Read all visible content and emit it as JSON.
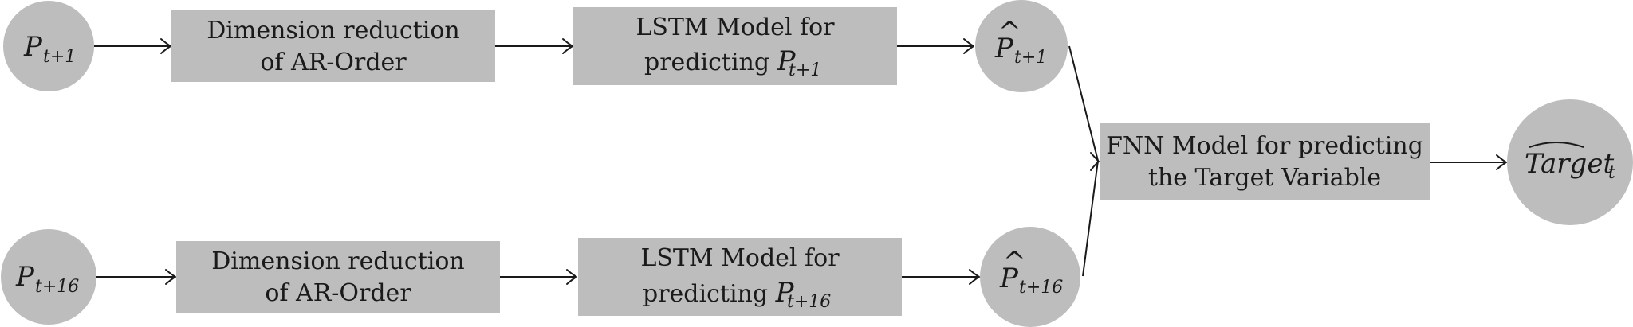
{
  "inputs": {
    "top": {
      "symbol": "P",
      "subscript": "t+1"
    },
    "bottom": {
      "symbol": "P",
      "subscript": "t+16"
    }
  },
  "reduction": {
    "top": {
      "line1": "Dimension reduction",
      "line2": "of AR-Order"
    },
    "bottom": {
      "line1": "Dimension reduction",
      "line2": "of AR-Order"
    }
  },
  "lstm": {
    "top": {
      "line1": "LSTM Model for",
      "line2": "predicting ",
      "symbol": "P",
      "subscript": "t+1"
    },
    "bottom": {
      "line1": "LSTM Model for",
      "line2": "predicting ",
      "symbol": "P",
      "subscript": "t+16"
    }
  },
  "predictions": {
    "top": {
      "hat": "^",
      "symbol": "P",
      "subscript": "t+1"
    },
    "bottom": {
      "hat": "^",
      "symbol": "P",
      "subscript": "t+16"
    }
  },
  "fnn": {
    "line1": "FNN Model for predicting",
    "line2": "the Target Variable"
  },
  "output": {
    "symbol": "Target",
    "subscript": "t"
  },
  "colors": {
    "fill": "#bdbdbd",
    "stroke": "#1a1a1a"
  }
}
